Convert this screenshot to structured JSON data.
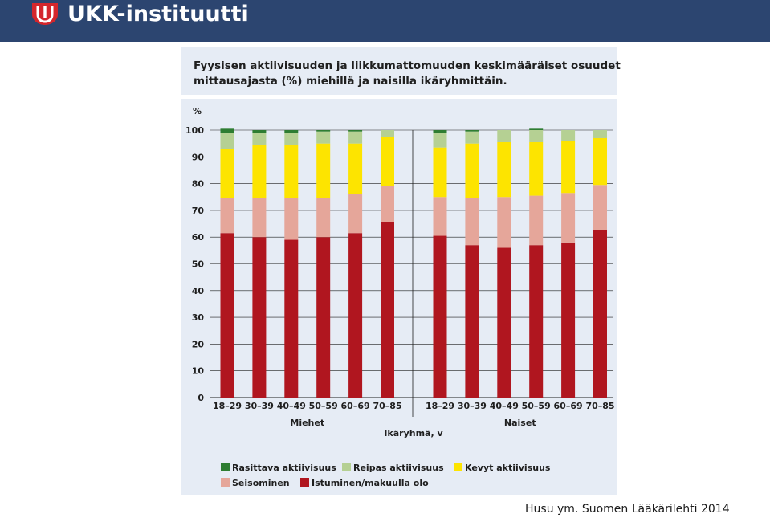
{
  "header": {
    "logo_text": "UKK-instituutti",
    "brand_color": "#2c4570",
    "logo_icon": "ukk-shield-logo"
  },
  "citation": "Husu ym. Suomen Lääkärilehti 2014",
  "chart_data": {
    "type": "bar",
    "stacked": true,
    "title_lines": [
      "Fyysisen aktiivisuuden ja liikkumattomuuden keskimääräiset osuudet",
      "mittausajasta (%) miehillä ja naisilla ikäryhmittäin."
    ],
    "ylabel": "%",
    "xlabel": "Ikäryhmä, v",
    "ylim": [
      0,
      100
    ],
    "yticks": [
      0,
      10,
      20,
      30,
      40,
      50,
      60,
      70,
      80,
      90,
      100
    ],
    "grid": true,
    "legend_position": "bottom",
    "groups": [
      {
        "name": "Miehet",
        "categories": [
          "18–29",
          "30–39",
          "40–49",
          "50–59",
          "60–69",
          "70–85"
        ]
      },
      {
        "name": "Naiset",
        "categories": [
          "18–29",
          "30–39",
          "40–49",
          "50–59",
          "60–69",
          "70–85"
        ]
      }
    ],
    "series": [
      {
        "name": "Istuminen/makuulla olo",
        "color": "#b0161f",
        "values": [
          61.5,
          60,
          59,
          60,
          61.5,
          65.5,
          60.5,
          57,
          56,
          57,
          58,
          62.5
        ]
      },
      {
        "name": "Seisominen",
        "color": "#e5a69a",
        "values": [
          13,
          14.5,
          15.5,
          14.5,
          14.5,
          13.5,
          14.5,
          17.5,
          19,
          18.5,
          18.5,
          17
        ]
      },
      {
        "name": "Kevyt aktiivisuus",
        "color": "#fde400",
        "values": [
          18.5,
          20,
          20,
          20.5,
          19,
          18.5,
          18.5,
          20.5,
          20.5,
          20,
          19.5,
          17.5
        ]
      },
      {
        "name": "Reipas aktiivisuus",
        "color": "#b5d093",
        "values": [
          6,
          4.5,
          4.5,
          4.5,
          4.5,
          2.5,
          5.5,
          4.5,
          4.5,
          4.5,
          4,
          3
        ]
      },
      {
        "name": "Rasittava aktiivisuus",
        "color": "#2e7d32",
        "values": [
          1.5,
          1,
          1,
          0.5,
          0.5,
          0,
          1,
          0.5,
          0,
          0.5,
          0,
          0
        ]
      }
    ],
    "legend_order": [
      "Rasittava aktiivisuus",
      "Reipas aktiivisuus",
      "Kevyt aktiivisuus",
      "Seisominen",
      "Istuminen/makuulla olo"
    ]
  }
}
